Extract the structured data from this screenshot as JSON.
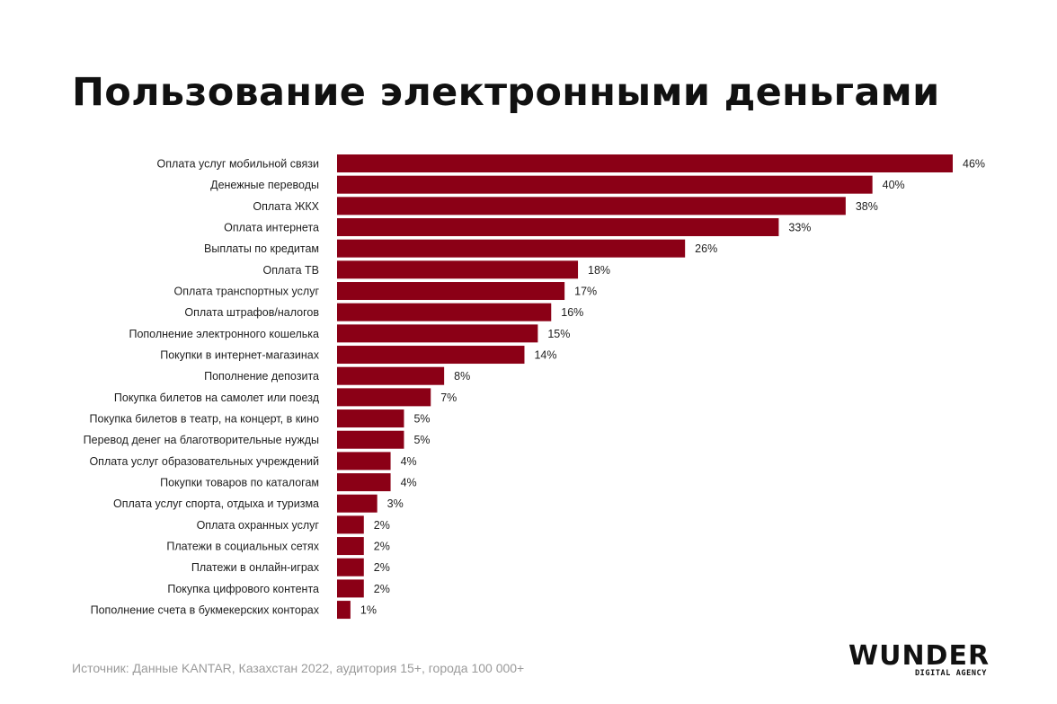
{
  "title": "Пользование электронными деньгами",
  "source": "Источник: Данные KANTAR, Казахстан 2022, аудитория 15+, города 100 000+",
  "logo": {
    "wordmark": "WUNDER",
    "tagline": "DIGITAL AGENCY"
  },
  "colors": {
    "bar": "#8b0016",
    "text": "#1e1e1e",
    "source": "#9a9a9a"
  },
  "chart_data": {
    "type": "bar",
    "orientation": "horizontal",
    "xlim": [
      0,
      46
    ],
    "grid": false,
    "categories": [
      "Оплата услуг мобильной связи",
      "Денежные переводы",
      "Оплата ЖКХ",
      "Оплата интернета",
      "Выплаты по кредитам",
      "Оплата ТВ",
      "Оплата транспортных услуг",
      "Оплата штрафов/налогов",
      "Пополнение электронного кошелька",
      "Покупки в интернет-магазинах",
      "Пополнение депозита",
      "Покупка билетов на самолет или поезд",
      "Покупка билетов в театр, на концерт, в кино",
      "Перевод денег на благотворительные нужды",
      "Оплата услуг образовательных учреждений",
      "Покупки товаров по каталогам",
      "Оплата услуг спорта, отдыха и туризма",
      "Оплата охранных услуг",
      "Платежи в социальных сетях",
      "Платежи в онлайн-играх",
      "Покупка цифрового контента",
      "Пополнение счета в букмекерских конторах"
    ],
    "values": [
      46,
      40,
      38,
      33,
      26,
      18,
      17,
      16,
      15,
      14,
      8,
      7,
      5,
      5,
      4,
      4,
      3,
      2,
      2,
      2,
      2,
      1
    ],
    "value_labels": [
      "46%",
      "40%",
      "38%",
      "33%",
      "26%",
      "18%",
      "17%",
      "16%",
      "15%",
      "14%",
      "8%",
      "7%",
      "5%",
      "5%",
      "4%",
      "4%",
      "3%",
      "2%",
      "2%",
      "2%",
      "2%",
      "1%"
    ]
  }
}
